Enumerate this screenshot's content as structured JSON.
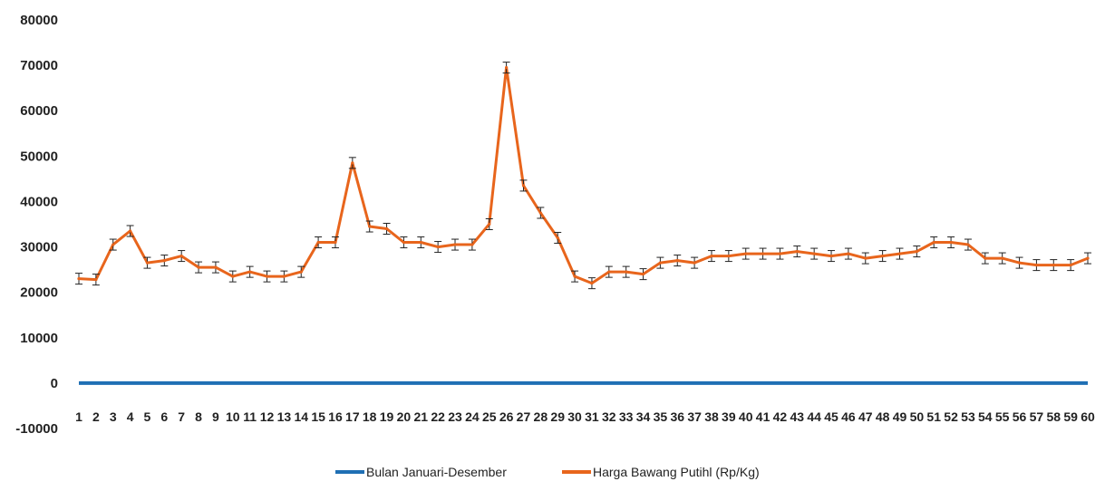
{
  "chart_data": {
    "type": "line",
    "x": [
      1,
      2,
      3,
      4,
      5,
      6,
      7,
      8,
      9,
      10,
      11,
      12,
      13,
      14,
      15,
      16,
      17,
      18,
      19,
      20,
      21,
      22,
      23,
      24,
      25,
      26,
      27,
      28,
      29,
      30,
      31,
      32,
      33,
      34,
      35,
      36,
      37,
      38,
      39,
      40,
      41,
      42,
      43,
      44,
      45,
      46,
      47,
      48,
      49,
      50,
      51,
      52,
      53,
      54,
      55,
      56,
      57,
      58,
      59,
      60
    ],
    "ylim": [
      -10000,
      80000
    ],
    "yticks": [
      -10000,
      0,
      10000,
      20000,
      30000,
      40000,
      50000,
      60000,
      70000,
      80000
    ],
    "grid": false,
    "legend_position": "bottom",
    "series": [
      {
        "name": "Bulan Januari-Desember",
        "color": "#1f6fb4",
        "values": [
          0,
          0,
          0,
          0,
          0,
          0,
          0,
          0,
          0,
          0,
          0,
          0,
          0,
          0,
          0,
          0,
          0,
          0,
          0,
          0,
          0,
          0,
          0,
          0,
          0,
          0,
          0,
          0,
          0,
          0,
          0,
          0,
          0,
          0,
          0,
          0,
          0,
          0,
          0,
          0,
          0,
          0,
          0,
          0,
          0,
          0,
          0,
          0,
          0,
          0,
          0,
          0,
          0,
          0,
          0,
          0,
          0,
          0,
          0,
          0
        ]
      },
      {
        "name": "Harga Bawang Putihl (Rp/Kg)",
        "color": "#e8651c",
        "error_bars": true,
        "values": [
          23000,
          22800,
          30500,
          33500,
          26500,
          27000,
          28000,
          25500,
          25500,
          23500,
          24500,
          23500,
          23500,
          24500,
          31000,
          31000,
          48500,
          34500,
          34000,
          31000,
          31000,
          30000,
          30500,
          30500,
          35000,
          69500,
          43500,
          37500,
          32000,
          23500,
          22000,
          24500,
          24500,
          24000,
          26500,
          27000,
          26500,
          28000,
          28000,
          28500,
          28500,
          28500,
          29000,
          28500,
          28000,
          28500,
          27500,
          28000,
          28500,
          29000,
          31000,
          31000,
          30500,
          27500,
          27500,
          26500,
          26000,
          26000,
          26000,
          27500
        ]
      }
    ]
  }
}
